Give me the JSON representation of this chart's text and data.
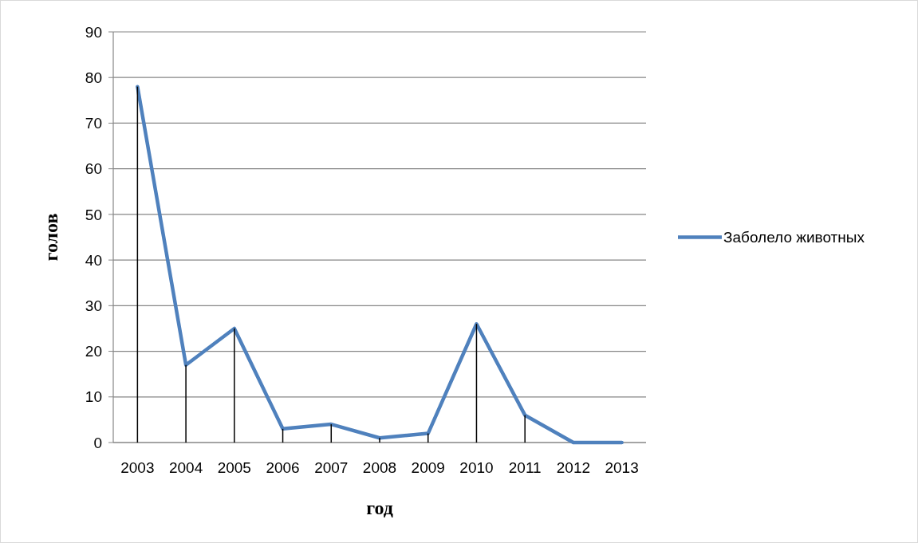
{
  "chart_data": {
    "type": "line",
    "xlabel": "год",
    "ylabel": "голов",
    "categories": [
      "2003",
      "2004",
      "2005",
      "2006",
      "2007",
      "2008",
      "2009",
      "2010",
      "2011",
      "2012",
      "2013"
    ],
    "series": [
      {
        "type": "bar",
        "color": "#000000",
        "values": [
          78,
          17,
          25,
          3,
          4,
          1,
          2,
          26,
          6,
          0,
          0
        ]
      },
      {
        "name": "Заболело животных",
        "color": "#4f81bd",
        "marker": "none",
        "values": [
          78,
          17,
          25,
          3,
          4,
          1,
          2,
          26,
          6,
          0,
          0
        ]
      }
    ],
    "ylim": [
      0,
      90
    ],
    "yticks": [
      0,
      10,
      20,
      30,
      40,
      50,
      60,
      70,
      80,
      90
    ],
    "grid": "y",
    "legend": "right"
  }
}
